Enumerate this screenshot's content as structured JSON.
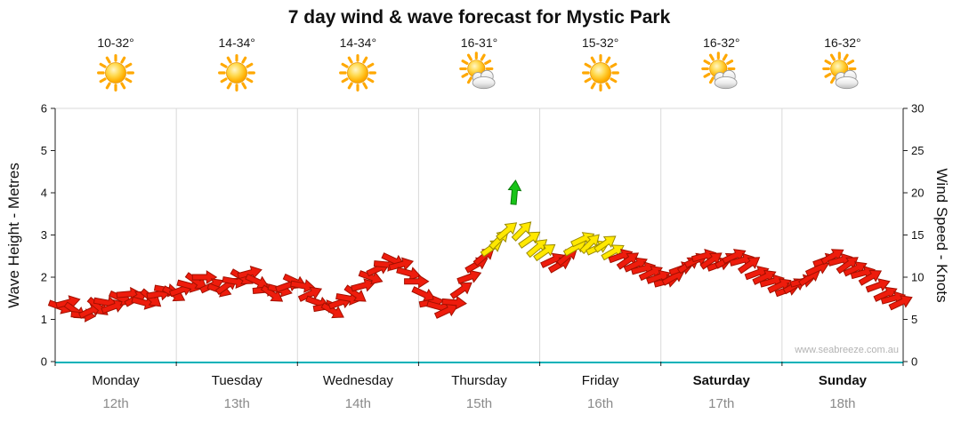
{
  "title": "7 day wind & wave forecast for Mystic Park",
  "watermark": "www.seabreeze.com.au",
  "days": [
    {
      "name": "Monday",
      "date": "12th",
      "temp": "10-32°",
      "icon": "sunny",
      "bold": false
    },
    {
      "name": "Tuesday",
      "date": "13th",
      "temp": "14-34°",
      "icon": "sunny",
      "bold": false
    },
    {
      "name": "Wednesday",
      "date": "14th",
      "temp": "14-34°",
      "icon": "sunny",
      "bold": false
    },
    {
      "name": "Thursday",
      "date": "15th",
      "temp": "16-31°",
      "icon": "partly",
      "bold": false
    },
    {
      "name": "Friday",
      "date": "16th",
      "temp": "15-32°",
      "icon": "sunny",
      "bold": false
    },
    {
      "name": "Saturday",
      "date": "17th",
      "temp": "16-32°",
      "icon": "partly",
      "bold": true
    },
    {
      "name": "Sunday",
      "date": "18th",
      "temp": "16-32°",
      "icon": "partly",
      "bold": true
    }
  ],
  "chart_data": {
    "type": "scatter",
    "subtype": "wind-direction-arrows",
    "title": "7 day wind & wave forecast for Mystic Park",
    "y_left": {
      "label": "Wave Height - Metres",
      "range": [
        0,
        6
      ],
      "ticks": [
        0,
        1,
        2,
        3,
        4,
        5,
        6
      ]
    },
    "y_right": {
      "label": "Wind Speed - Knots",
      "range": [
        0,
        30
      ],
      "ticks": [
        0,
        5,
        10,
        15,
        20,
        25,
        30
      ]
    },
    "x": {
      "range_hours": [
        0,
        168
      ],
      "days": [
        "Monday 12th",
        "Tuesday 13th",
        "Wednesday 14th",
        "Thursday 15th",
        "Friday 16th",
        "Saturday 17th",
        "Sunday 18th"
      ]
    },
    "grid": "vertical-day-separators",
    "legend": "none",
    "colors": {
      "light": "#ee1c0c",
      "moderate": "#ffe800",
      "fresh": "#17c417",
      "baseline": "#00b2b8"
    },
    "thresholds_knots": {
      "moderate": 13,
      "fresh": 18
    },
    "point_format": [
      "hour_from_monday_0",
      "wind_speed_knots",
      "arrow_rotation_deg_cw_0_is_right"
    ],
    "points": [
      [
        1,
        6.5,
        20
      ],
      [
        2.5,
        7,
        -15
      ],
      [
        4,
        6,
        35
      ],
      [
        5.5,
        5.5,
        5
      ],
      [
        7,
        6,
        -25
      ],
      [
        8.5,
        6.5,
        40
      ],
      [
        10,
        7,
        10
      ],
      [
        11.5,
        6.5,
        -20
      ],
      [
        13,
        7.5,
        25
      ],
      [
        14.5,
        8,
        -5
      ],
      [
        16,
        7.5,
        -30
      ],
      [
        17.5,
        7,
        15
      ],
      [
        19,
        7.5,
        40
      ],
      [
        20.5,
        8,
        -10
      ],
      [
        22,
        8.5,
        10
      ],
      [
        23.5,
        8,
        30
      ],
      [
        25,
        8.5,
        -20
      ],
      [
        26.5,
        9,
        15
      ],
      [
        28,
        9.5,
        35
      ],
      [
        29.5,
        10,
        0
      ],
      [
        31,
        9,
        -25
      ],
      [
        32.5,
        8.5,
        20
      ],
      [
        34,
        9,
        -35
      ],
      [
        35.5,
        9.5,
        10
      ],
      [
        37,
        10,
        30
      ],
      [
        38.5,
        10.5,
        -15
      ],
      [
        40,
        9.5,
        25
      ],
      [
        41.5,
        8.5,
        -5
      ],
      [
        43,
        8,
        35
      ],
      [
        44.5,
        8.5,
        15
      ],
      [
        46,
        9,
        -20
      ],
      [
        47.5,
        9.5,
        25
      ],
      [
        49,
        9,
        10
      ],
      [
        50.5,
        8,
        -25
      ],
      [
        52,
        7,
        20
      ],
      [
        53.5,
        6.5,
        -10
      ],
      [
        55,
        6,
        30
      ],
      [
        56.5,
        7,
        -20
      ],
      [
        58,
        7.5,
        10
      ],
      [
        59.5,
        8,
        35
      ],
      [
        61,
        9,
        -15
      ],
      [
        62.5,
        10,
        20
      ],
      [
        64,
        11,
        -25
      ],
      [
        65.5,
        11.5,
        5
      ],
      [
        67,
        12,
        25
      ],
      [
        68.5,
        11.5,
        -15
      ],
      [
        70,
        10.5,
        15
      ],
      [
        71.5,
        9.5,
        0
      ],
      [
        73,
        8,
        25
      ],
      [
        74.5,
        7,
        -10
      ],
      [
        76,
        6.5,
        15
      ],
      [
        77.5,
        6,
        -25
      ],
      [
        79,
        7,
        5
      ],
      [
        80.5,
        8.5,
        -35
      ],
      [
        82,
        10,
        -20
      ],
      [
        83.5,
        11.5,
        -30
      ],
      [
        85,
        12.5,
        -40
      ],
      [
        86.5,
        13.5,
        -35
      ],
      [
        88,
        14.5,
        -45
      ],
      [
        89.5,
        15.5,
        -40
      ],
      [
        91,
        20,
        -85
      ],
      [
        92.5,
        15.5,
        -45
      ],
      [
        94,
        14.5,
        -35
      ],
      [
        95.5,
        13.5,
        -40
      ],
      [
        97,
        13,
        -35
      ],
      [
        98.5,
        12,
        -25
      ],
      [
        100,
        11.5,
        -30
      ],
      [
        101.5,
        12.5,
        -40
      ],
      [
        103,
        13.5,
        -30
      ],
      [
        104.5,
        14.5,
        -25
      ],
      [
        106,
        14,
        -45
      ],
      [
        107.5,
        13.5,
        -25
      ],
      [
        109,
        14,
        -35
      ],
      [
        110.5,
        13,
        -30
      ],
      [
        112,
        12.5,
        -20
      ],
      [
        113.5,
        12,
        -35
      ],
      [
        115,
        11.5,
        -25
      ],
      [
        116.5,
        11,
        -15
      ],
      [
        118,
        10.5,
        -25
      ],
      [
        119.5,
        10,
        -20
      ],
      [
        121,
        9.5,
        -15
      ],
      [
        122.5,
        10,
        -30
      ],
      [
        124,
        11,
        -20
      ],
      [
        125.5,
        11.5,
        -35
      ],
      [
        127,
        12,
        -25
      ],
      [
        128.5,
        12.5,
        -15
      ],
      [
        130,
        12,
        -35
      ],
      [
        131.5,
        11.5,
        -20
      ],
      [
        133,
        12,
        -30
      ],
      [
        134.5,
        12.5,
        -25
      ],
      [
        136,
        12,
        -15
      ],
      [
        137.5,
        11.5,
        -35
      ],
      [
        139,
        10.5,
        -20
      ],
      [
        140.5,
        10,
        -25
      ],
      [
        142,
        9.5,
        -15
      ],
      [
        143.5,
        9,
        -25
      ],
      [
        145,
        8.5,
        -20
      ],
      [
        146.5,
        9,
        -30
      ],
      [
        148,
        9.5,
        -15
      ],
      [
        149.5,
        10,
        -35
      ],
      [
        151,
        11,
        -25
      ],
      [
        152.5,
        12,
        -20
      ],
      [
        154,
        12.5,
        -30
      ],
      [
        155.5,
        12,
        -15
      ],
      [
        157,
        11.5,
        -35
      ],
      [
        158.5,
        11,
        -25
      ],
      [
        160,
        10.5,
        -15
      ],
      [
        161.5,
        10,
        -30
      ],
      [
        163,
        9,
        -20
      ],
      [
        164.5,
        8,
        -25
      ],
      [
        166,
        7.5,
        -15
      ],
      [
        167.5,
        7,
        -25
      ]
    ]
  }
}
